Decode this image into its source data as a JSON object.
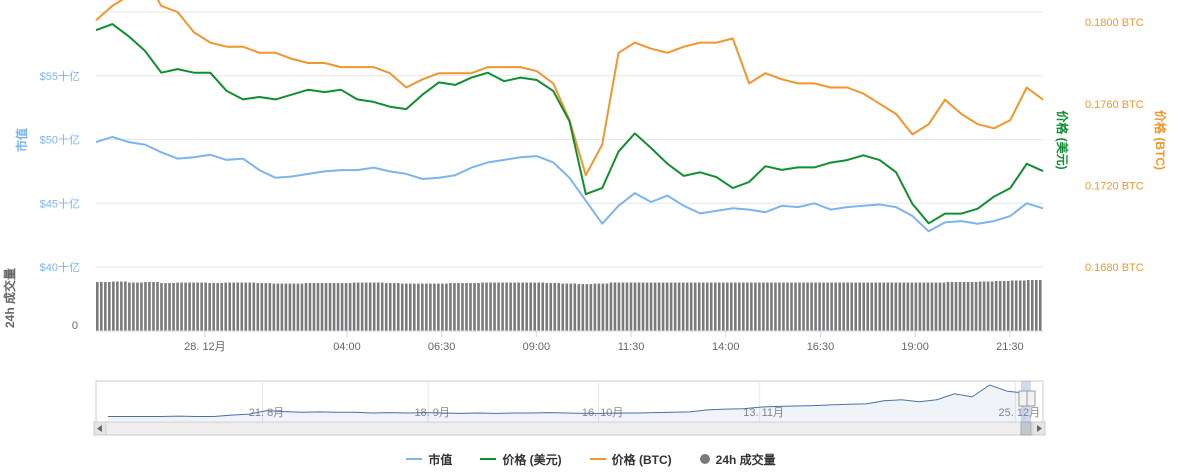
{
  "chart_data": {
    "type": "line",
    "left_axis": {
      "title": "市值",
      "ticks": [
        {
          "value": 55,
          "label": "$55十亿"
        },
        {
          "value": 50,
          "label": "$50十亿"
        },
        {
          "value": 45,
          "label": "$45十亿"
        },
        {
          "value": 40,
          "label": "$40十亿"
        }
      ],
      "range": [
        40,
        60
      ]
    },
    "right_axis_btc": {
      "title": "价格 (BTC)",
      "ticks": [
        {
          "value": 0.18,
          "label": "0.1800 BTC"
        },
        {
          "value": 0.176,
          "label": "0.1760 BTC"
        },
        {
          "value": 0.172,
          "label": "0.1720 BTC"
        },
        {
          "value": 0.168,
          "label": "0.1680 BTC"
        }
      ],
      "range": [
        0.168,
        0.1805
      ]
    },
    "right_axis_usd_title": "价格 (美元)",
    "volume_axis": {
      "title": "24h 成交量",
      "tick_label": "0"
    },
    "x_axis": {
      "ticks": [
        {
          "pos": 0.115,
          "label": "28. 12月"
        },
        {
          "pos": 0.265,
          "label": "04:00"
        },
        {
          "pos": 0.365,
          "label": "06:30"
        },
        {
          "pos": 0.465,
          "label": "09:00"
        },
        {
          "pos": 0.565,
          "label": "11:30"
        },
        {
          "pos": 0.665,
          "label": "14:00"
        },
        {
          "pos": 0.765,
          "label": "16:30"
        },
        {
          "pos": 0.865,
          "label": "19:00"
        },
        {
          "pos": 0.965,
          "label": "21:30"
        }
      ]
    },
    "series": [
      {
        "name": "市值",
        "color": "#7cb5ec",
        "axis": "left",
        "values": [
          49.8,
          50.2,
          49.8,
          49.6,
          49.0,
          48.5,
          48.6,
          48.8,
          48.4,
          48.5,
          47.6,
          47.0,
          47.1,
          47.3,
          47.5,
          47.6,
          47.6,
          47.8,
          47.5,
          47.3,
          46.9,
          47.0,
          47.2,
          47.8,
          48.2,
          48.4,
          48.6,
          48.7,
          48.2,
          47.0,
          45.2,
          43.4,
          44.8,
          45.8,
          45.1,
          45.6,
          44.8,
          44.2,
          44.4,
          44.6,
          44.5,
          44.3,
          44.8,
          44.7,
          45.0,
          44.5,
          44.7,
          44.8,
          44.9,
          44.7,
          44.0,
          42.8,
          43.5,
          43.6,
          43.4,
          43.6,
          44.0,
          45.0,
          44.6
        ]
      },
      {
        "name": "价格 (美元)",
        "color": "#0f8f2f",
        "axis": "usd",
        "values": [
          59.5,
          60.0,
          59.0,
          57.8,
          56.0,
          56.3,
          56.0,
          56.0,
          54.5,
          53.8,
          54.0,
          53.8,
          54.2,
          54.6,
          54.4,
          54.6,
          53.8,
          53.6,
          53.2,
          53.0,
          54.2,
          55.2,
          55.0,
          55.6,
          56.0,
          55.3,
          55.6,
          55.4,
          54.5,
          52.0,
          46.0,
          46.5,
          49.5,
          51.0,
          49.8,
          48.5,
          47.5,
          47.8,
          47.4,
          46.5,
          47.0,
          48.3,
          48.0,
          48.2,
          48.2,
          48.6,
          48.8,
          49.2,
          48.8,
          47.8,
          45.2,
          43.6,
          44.4,
          44.4,
          44.8,
          45.8,
          46.5,
          48.5,
          47.9
        ]
      },
      {
        "name": "价格 (BTC)",
        "color": "#f0962e",
        "axis": "btc",
        "values": [
          0.1801,
          0.1808,
          0.1813,
          0.1822,
          0.1808,
          0.1805,
          0.1795,
          0.179,
          0.1788,
          0.1788,
          0.1785,
          0.1785,
          0.1782,
          0.178,
          0.178,
          0.1778,
          0.1778,
          0.1778,
          0.1775,
          0.1768,
          0.1772,
          0.1775,
          0.1775,
          0.1775,
          0.1778,
          0.1778,
          0.1778,
          0.1776,
          0.177,
          0.1752,
          0.1725,
          0.174,
          0.1785,
          0.179,
          0.1787,
          0.1785,
          0.1788,
          0.179,
          0.179,
          0.1792,
          0.177,
          0.1775,
          0.1772,
          0.177,
          0.177,
          0.1768,
          0.1768,
          0.1765,
          0.176,
          0.1755,
          0.1745,
          0.175,
          0.1762,
          0.1755,
          0.175,
          0.1748,
          0.1752,
          0.1768,
          0.1762
        ]
      }
    ],
    "volume_series": {
      "name": "24h 成交量",
      "color": "#7a7a7a",
      "values": [
        0.96,
        0.97,
        0.95,
        0.96,
        0.94,
        0.95,
        0.95,
        0.94,
        0.95,
        0.95,
        0.94,
        0.93,
        0.93,
        0.94,
        0.94,
        0.94,
        0.95,
        0.95,
        0.94,
        0.93,
        0.93,
        0.93,
        0.94,
        0.94,
        0.95,
        0.95,
        0.95,
        0.95,
        0.94,
        0.93,
        0.92,
        0.93,
        0.95,
        0.95,
        0.95,
        0.95,
        0.95,
        0.95,
        0.95,
        0.95,
        0.95,
        0.95,
        0.95,
        0.95,
        0.95,
        0.95,
        0.95,
        0.95,
        0.95,
        0.95,
        0.95,
        0.95,
        0.95,
        0.96,
        0.96,
        0.97,
        0.98,
        0.99,
        1.0
      ]
    },
    "navigator": {
      "labels": [
        {
          "pos": 0.18,
          "label": "21. 8月"
        },
        {
          "pos": 0.355,
          "label": "18. 9月"
        },
        {
          "pos": 0.535,
          "label": "16. 10月"
        },
        {
          "pos": 0.705,
          "label": "13. 11月"
        },
        {
          "pos": 0.975,
          "label": "25. 12月"
        }
      ],
      "values": [
        0.1,
        0.1,
        0.1,
        0.1,
        0.11,
        0.1,
        0.1,
        0.14,
        0.17,
        0.27,
        0.24,
        0.22,
        0.23,
        0.22,
        0.22,
        0.2,
        0.21,
        0.2,
        0.21,
        0.2,
        0.19,
        0.2,
        0.19,
        0.2,
        0.2,
        0.21,
        0.2,
        0.19,
        0.19,
        0.2,
        0.2,
        0.21,
        0.22,
        0.23,
        0.29,
        0.31,
        0.32,
        0.37,
        0.39,
        0.4,
        0.41,
        0.43,
        0.45,
        0.46,
        0.55,
        0.58,
        0.52,
        0.58,
        0.75,
        0.66,
        1.0,
        0.82,
        0.77
      ]
    }
  },
  "legend": {
    "items": [
      {
        "label": "市值",
        "color": "#7cb5ec"
      },
      {
        "label": "价格 (美元)",
        "color": "#0f8f2f"
      },
      {
        "label": "价格 (BTC)",
        "color": "#f0962e"
      },
      {
        "label": "24h 成交量",
        "color": "#7a7a7a"
      }
    ]
  },
  "colors": {
    "market_cap": "#7cb5ec",
    "price_usd": "#0f8f2f",
    "price_btc": "#f0962e",
    "volume": "#7a7a7a",
    "grid": "#e6e6e6"
  }
}
